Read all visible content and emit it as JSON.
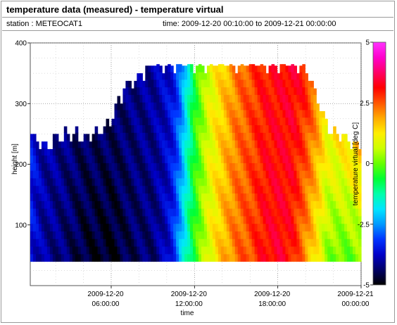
{
  "header": {
    "title": "temperature data (measured) - temperature virtual",
    "station": "station : METEOCAT1",
    "time_range": "time: 2009-12-20 00:10:00 to 2009-12-21 00:00:00"
  },
  "chart_data": {
    "type": "heatmap",
    "title": "temperature data (measured) - temperature virtual",
    "xlabel": "time",
    "ylabel": "height [m]",
    "colorbar_label": "temperature virtual [deg C]",
    "x_ticks": [
      {
        "line1": "2009-12-20",
        "line2": "06:00:00",
        "hour": 6
      },
      {
        "line1": "2009-12-20",
        "line2": "12:00:00",
        "hour": 12
      },
      {
        "line1": "2009-12-20",
        "line2": "18:00:00",
        "hour": 18
      },
      {
        "line1": "2009-12-21",
        "line2": "00:00:00",
        "hour": 24
      }
    ],
    "xlim_hours": [
      0.17,
      24
    ],
    "y_ticks": [
      100,
      200,
      300,
      400
    ],
    "ylim": [
      0,
      400
    ],
    "colorbar_ticks": [
      -5,
      -2.5,
      0,
      2.5,
      5
    ],
    "colorbar_range": [
      -5,
      5
    ],
    "data_height_range": [
      40,
      365
    ],
    "time_keyframes_hours": [
      0.17,
      1,
      2,
      3,
      4,
      5,
      6,
      7,
      8,
      9,
      10,
      10.5,
      11,
      11.5,
      12,
      13,
      14,
      15,
      16,
      17,
      18,
      19,
      20,
      21,
      21.5,
      22,
      23,
      24
    ],
    "surface_temp_deg_c": [
      -3.5,
      -4.0,
      -4.2,
      -4.4,
      -4.7,
      -4.8,
      -4.9,
      -4.6,
      -4.4,
      -4.3,
      -3.8,
      -3.2,
      -2.2,
      -1.2,
      -0.4,
      0.9,
      1.7,
      2.3,
      2.6,
      3.1,
      3.3,
      3.0,
      2.0,
      0.9,
      0.3,
      0.0,
      -0.1,
      0.1
    ],
    "top_temp_deg_c": [
      -3.2,
      -3.9,
      -4.0,
      -4.2,
      -4.3,
      -4.2,
      -4.2,
      -4.2,
      -4.1,
      -4.0,
      -3.7,
      -3.5,
      -2.8,
      -1.6,
      -0.5,
      0.8,
      1.5,
      2.2,
      2.6,
      3.0,
      3.1,
      3.3,
      3.0,
      2.2,
      1.6,
      1.9,
      2.3,
      3.0
    ],
    "data_top_height_m": [
      250,
      230,
      240,
      250,
      245,
      250,
      270,
      330,
      345,
      365,
      365,
      365,
      365,
      365,
      365,
      365,
      365,
      365,
      365,
      365,
      365,
      365,
      360,
      300,
      270,
      255,
      240,
      230
    ],
    "colormap": [
      "#000000",
      "#000066",
      "#0000c8",
      "#0033ff",
      "#0099ff",
      "#00e5ff",
      "#00ffaa",
      "#00ff33",
      "#66ff00",
      "#ccff00",
      "#ffee00",
      "#ffaa00",
      "#ff5500",
      "#ff0000",
      "#ff0066",
      "#ff00cc",
      "#ff33ff"
    ]
  }
}
